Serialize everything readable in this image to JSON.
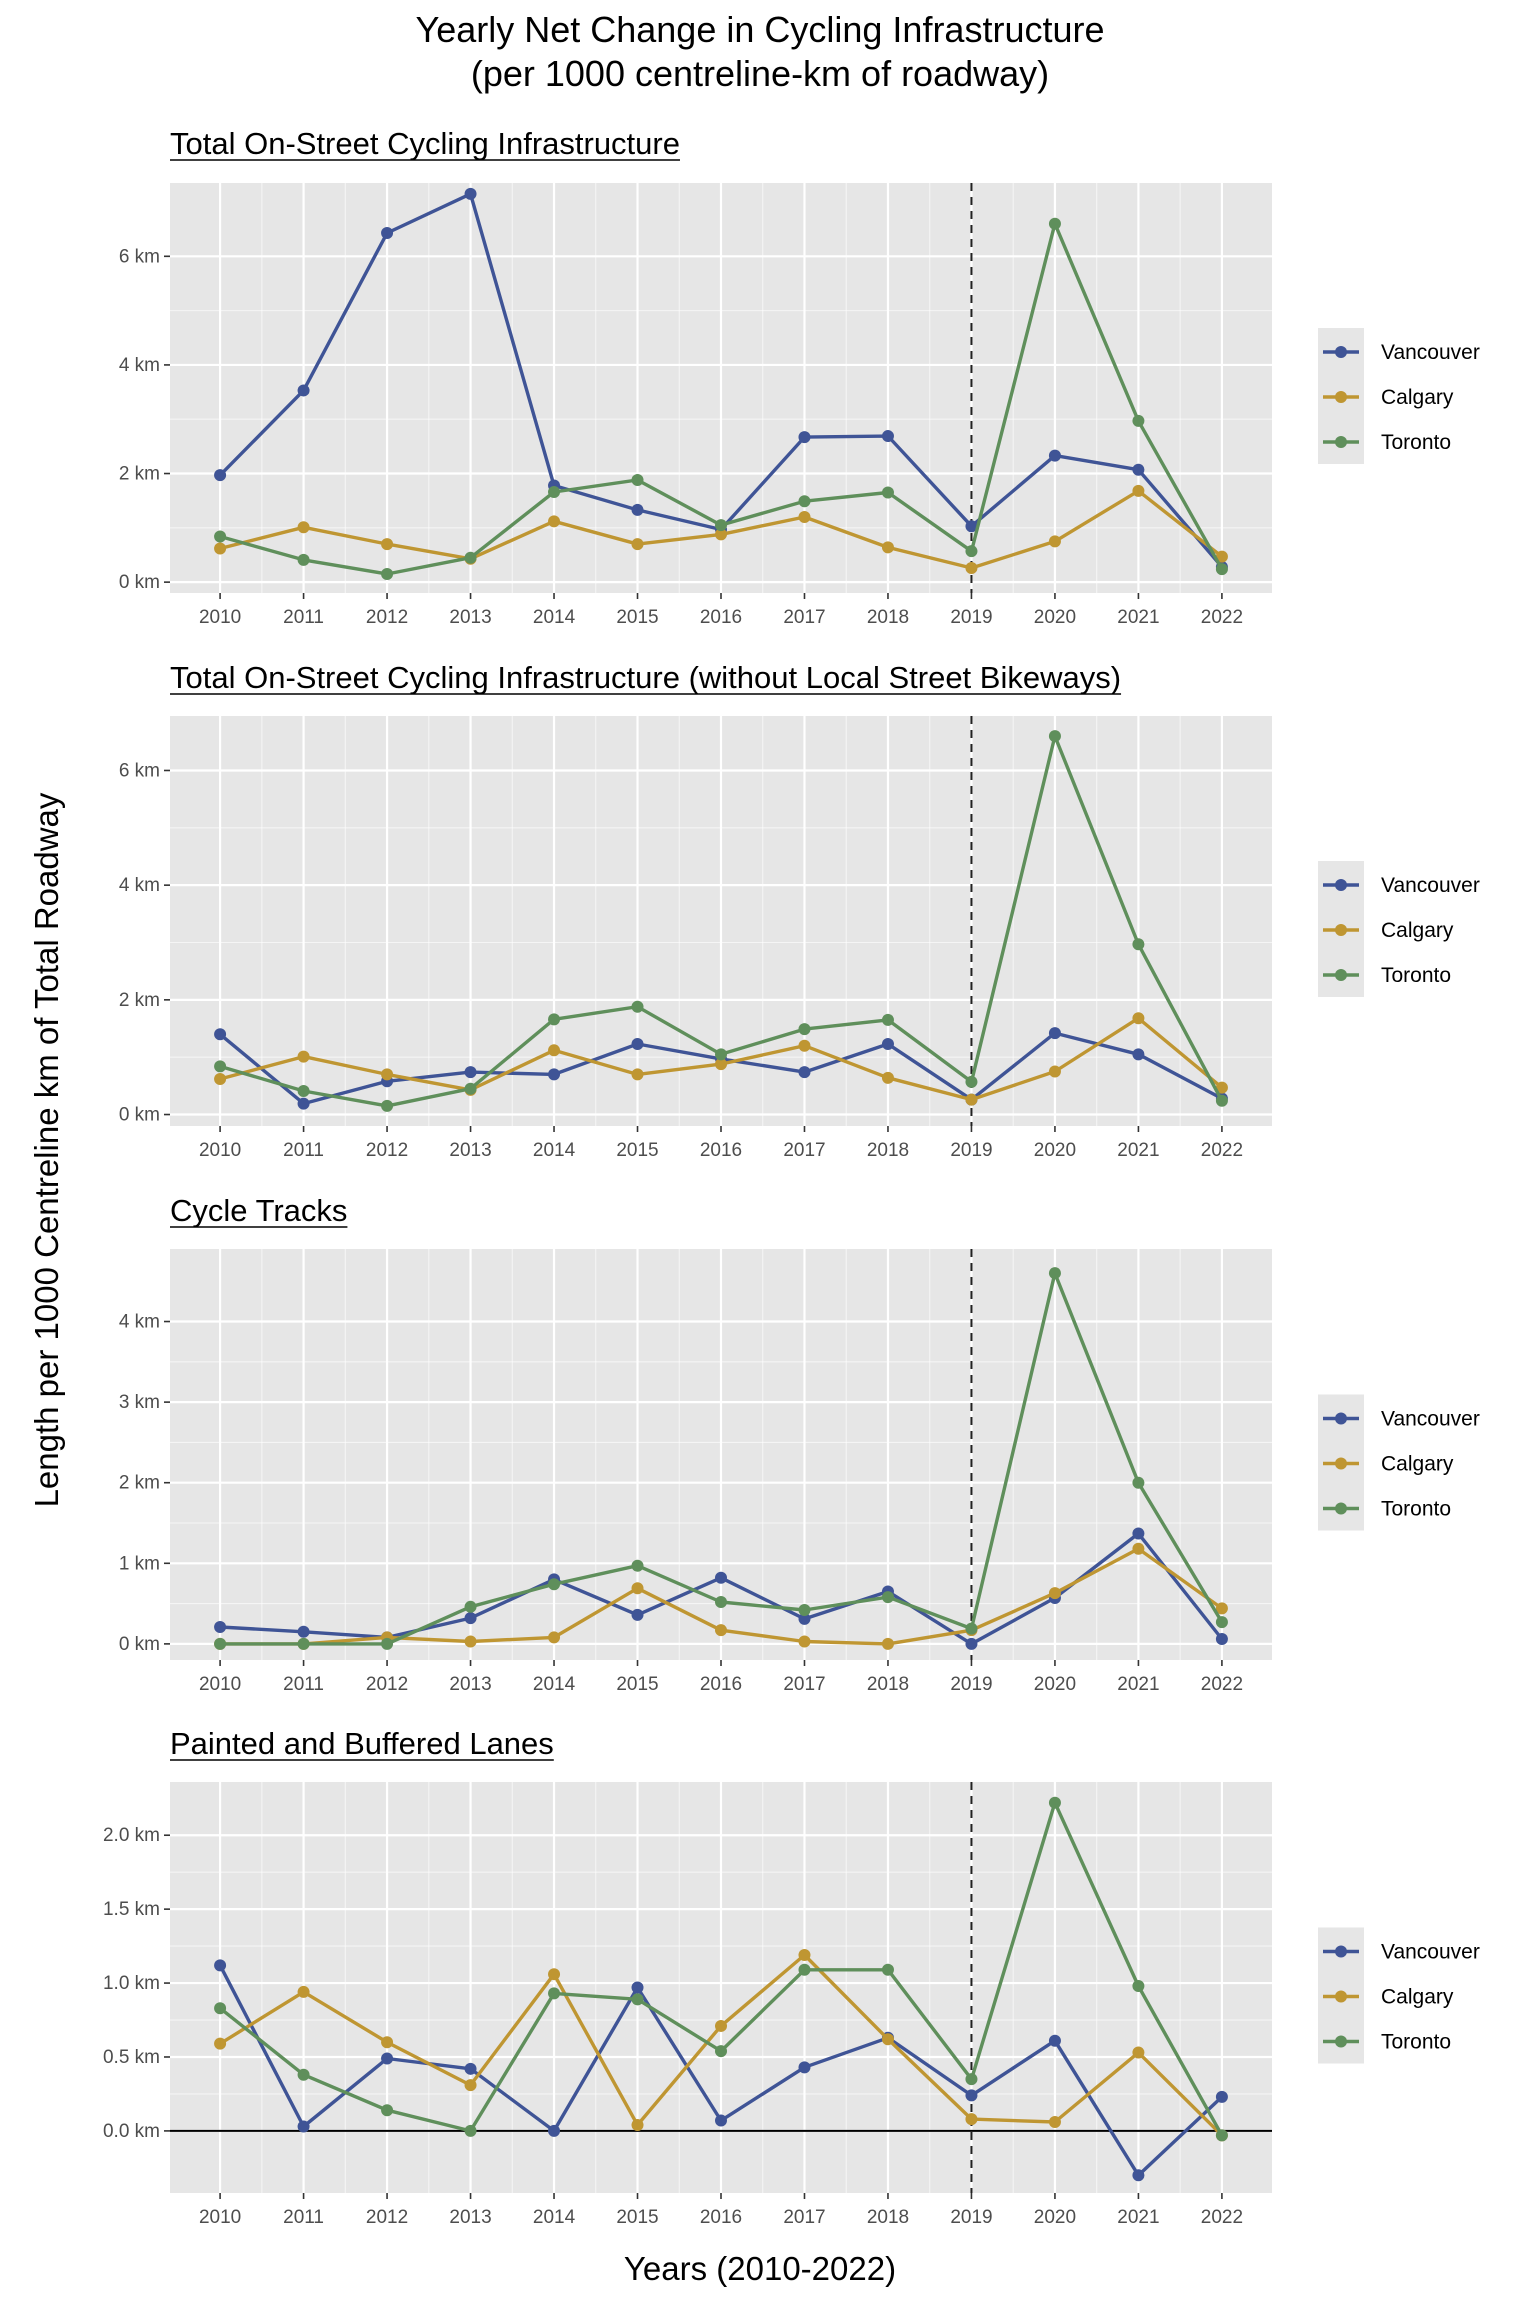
{
  "figure": {
    "title_line1": "Yearly Net Change in Cycling Infrastructure",
    "title_line2": "(per 1000 centreline-km of roadway)",
    "ylabel": "Length per 1000 Centreline km of Total Roadway",
    "xlabel": "Years (2010-2022)"
  },
  "colors": {
    "Vancouver": "#3f5496",
    "Calgary": "#bf9632",
    "Toronto": "#5f8f5b",
    "panel_bg": "#e6e6e6",
    "grid": "#ffffff"
  },
  "chart_data": [
    {
      "type": "line",
      "title": "Total On-Street Cycling Infrastructure",
      "x": [
        2010,
        2011,
        2012,
        2013,
        2014,
        2015,
        2016,
        2017,
        2018,
        2019,
        2020,
        2021,
        2022
      ],
      "ylim": [
        -0.2,
        7.35
      ],
      "yticks": [
        0,
        2,
        4,
        6
      ],
      "ytick_labels": [
        "0 km",
        "2 km",
        "4 km",
        "6 km"
      ],
      "reference_x": 2019,
      "zero_line": false,
      "legend_position": "right",
      "series": [
        {
          "name": "Vancouver",
          "values": [
            1.97,
            3.53,
            6.43,
            7.15,
            1.78,
            1.33,
            0.97,
            2.67,
            2.69,
            1.03,
            2.33,
            2.07,
            0.28
          ]
        },
        {
          "name": "Calgary",
          "values": [
            0.62,
            1.01,
            0.7,
            0.43,
            1.12,
            0.7,
            0.88,
            1.2,
            0.64,
            0.26,
            0.75,
            1.68,
            0.47
          ]
        },
        {
          "name": "Toronto",
          "values": [
            0.84,
            0.41,
            0.15,
            0.45,
            1.66,
            1.88,
            1.05,
            1.49,
            1.65,
            0.57,
            6.6,
            2.97,
            0.24
          ]
        }
      ]
    },
    {
      "type": "line",
      "title": "Total On-Street Cycling Infrastructure (without Local Street Bikeways)",
      "x": [
        2010,
        2011,
        2012,
        2013,
        2014,
        2015,
        2016,
        2017,
        2018,
        2019,
        2020,
        2021,
        2022
      ],
      "ylim": [
        -0.2,
        6.95
      ],
      "yticks": [
        0,
        2,
        4,
        6
      ],
      "ytick_labels": [
        "0 km",
        "2 km",
        "4 km",
        "6 km"
      ],
      "reference_x": 2019,
      "zero_line": false,
      "legend_position": "right",
      "series": [
        {
          "name": "Vancouver",
          "values": [
            1.4,
            0.19,
            0.58,
            0.74,
            0.7,
            1.23,
            0.97,
            0.74,
            1.23,
            0.26,
            1.42,
            1.05,
            0.28
          ]
        },
        {
          "name": "Calgary",
          "values": [
            0.62,
            1.01,
            0.7,
            0.43,
            1.12,
            0.7,
            0.88,
            1.2,
            0.64,
            0.26,
            0.75,
            1.68,
            0.47
          ]
        },
        {
          "name": "Toronto",
          "values": [
            0.84,
            0.41,
            0.15,
            0.45,
            1.66,
            1.88,
            1.05,
            1.49,
            1.65,
            0.57,
            6.6,
            2.97,
            0.24
          ]
        }
      ]
    },
    {
      "type": "line",
      "title": "Cycle Tracks",
      "x": [
        2010,
        2011,
        2012,
        2013,
        2014,
        2015,
        2016,
        2017,
        2018,
        2019,
        2020,
        2021,
        2022
      ],
      "ylim": [
        -0.2,
        4.9
      ],
      "yticks": [
        0,
        1,
        2,
        3,
        4
      ],
      "ytick_labels": [
        "0 km",
        "1 km",
        "2 km",
        "3 km",
        "4 km"
      ],
      "reference_x": 2019,
      "zero_line": false,
      "legend_position": "right",
      "series": [
        {
          "name": "Vancouver",
          "values": [
            0.21,
            0.15,
            0.08,
            0.32,
            0.8,
            0.36,
            0.82,
            0.31,
            0.65,
            0.0,
            0.57,
            1.37,
            0.06
          ]
        },
        {
          "name": "Calgary",
          "values": [
            0.0,
            0.0,
            0.08,
            0.03,
            0.08,
            0.69,
            0.17,
            0.03,
            0.0,
            0.17,
            0.63,
            1.18,
            0.44
          ]
        },
        {
          "name": "Toronto",
          "values": [
            0.0,
            0.0,
            0.0,
            0.46,
            0.74,
            0.97,
            0.52,
            0.42,
            0.58,
            0.19,
            4.6,
            2.0,
            0.27
          ]
        }
      ]
    },
    {
      "type": "line",
      "title": "Painted and Buffered Lanes",
      "x": [
        2010,
        2011,
        2012,
        2013,
        2014,
        2015,
        2016,
        2017,
        2018,
        2019,
        2020,
        2021,
        2022
      ],
      "ylim": [
        -0.42,
        2.36
      ],
      "yticks": [
        0,
        0.5,
        1,
        1.5,
        2
      ],
      "ytick_labels": [
        "0.0 km",
        "0.5 km",
        "1.0 km",
        "1.5 km",
        "2.0 km"
      ],
      "reference_x": 2019,
      "zero_line": true,
      "legend_position": "right",
      "series": [
        {
          "name": "Vancouver",
          "values": [
            1.12,
            0.03,
            0.49,
            0.42,
            0.0,
            0.97,
            0.07,
            0.43,
            0.63,
            0.24,
            0.61,
            -0.3,
            0.23
          ]
        },
        {
          "name": "Calgary",
          "values": [
            0.59,
            0.94,
            0.6,
            0.31,
            1.06,
            0.04,
            0.71,
            1.19,
            0.62,
            0.08,
            0.06,
            0.53,
            -0.03
          ]
        },
        {
          "name": "Toronto",
          "values": [
            0.83,
            0.38,
            0.14,
            0.0,
            0.93,
            0.89,
            0.54,
            1.09,
            1.09,
            0.35,
            2.22,
            0.98,
            -0.03
          ]
        }
      ]
    }
  ]
}
